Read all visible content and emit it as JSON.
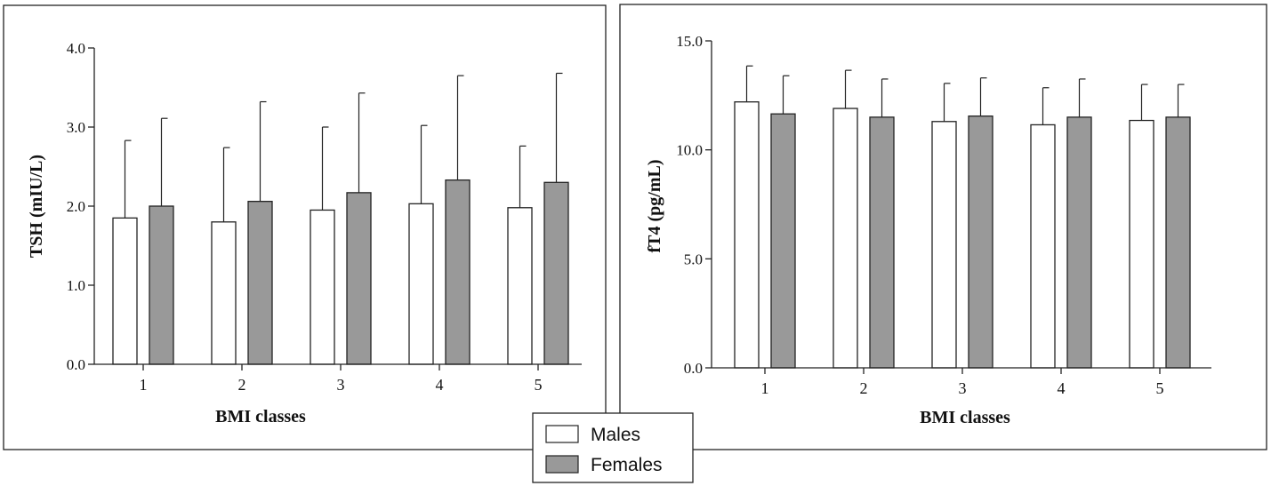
{
  "legend": {
    "items": [
      {
        "label": "Males",
        "color": "#ffffff"
      },
      {
        "label": "Females",
        "color": "#999999"
      }
    ]
  },
  "chart_data": [
    {
      "type": "bar",
      "title": "",
      "xlabel": "BMI classes",
      "ylabel": "TSH (mIU/L)",
      "categories": [
        "1",
        "2",
        "3",
        "4",
        "5"
      ],
      "ylim": [
        0,
        4
      ],
      "yticks": [
        0,
        1,
        2,
        3,
        4
      ],
      "ytick_labels": [
        "0.0",
        "1.0",
        "2.0",
        "3.0",
        "4.0"
      ],
      "error_bars": "upper SD",
      "series": [
        {
          "name": "Males",
          "color": "#ffffff",
          "values": [
            1.85,
            1.8,
            1.95,
            2.03,
            1.98
          ],
          "errors": [
            0.98,
            0.94,
            1.05,
            0.99,
            0.78
          ]
        },
        {
          "name": "Females",
          "color": "#999999",
          "values": [
            2.0,
            2.06,
            2.17,
            2.33,
            2.3
          ],
          "errors": [
            1.11,
            1.26,
            1.26,
            1.32,
            1.38
          ]
        }
      ]
    },
    {
      "type": "bar",
      "title": "",
      "xlabel": "BMI classes",
      "ylabel": "fT4 (pg/mL)",
      "categories": [
        "1",
        "2",
        "3",
        "4",
        "5"
      ],
      "ylim": [
        0,
        15
      ],
      "yticks": [
        0,
        5,
        10,
        15
      ],
      "ytick_labels": [
        "0.0",
        "5.0",
        "10.0",
        "15.0"
      ],
      "error_bars": "upper SD",
      "series": [
        {
          "name": "Males",
          "color": "#ffffff",
          "values": [
            12.2,
            11.9,
            11.3,
            11.15,
            11.35
          ],
          "errors": [
            1.65,
            1.75,
            1.75,
            1.7,
            1.65
          ]
        },
        {
          "name": "Females",
          "color": "#999999",
          "values": [
            11.65,
            11.5,
            11.55,
            11.5,
            11.5
          ],
          "errors": [
            1.75,
            1.75,
            1.75,
            1.75,
            1.5
          ]
        }
      ]
    }
  ]
}
